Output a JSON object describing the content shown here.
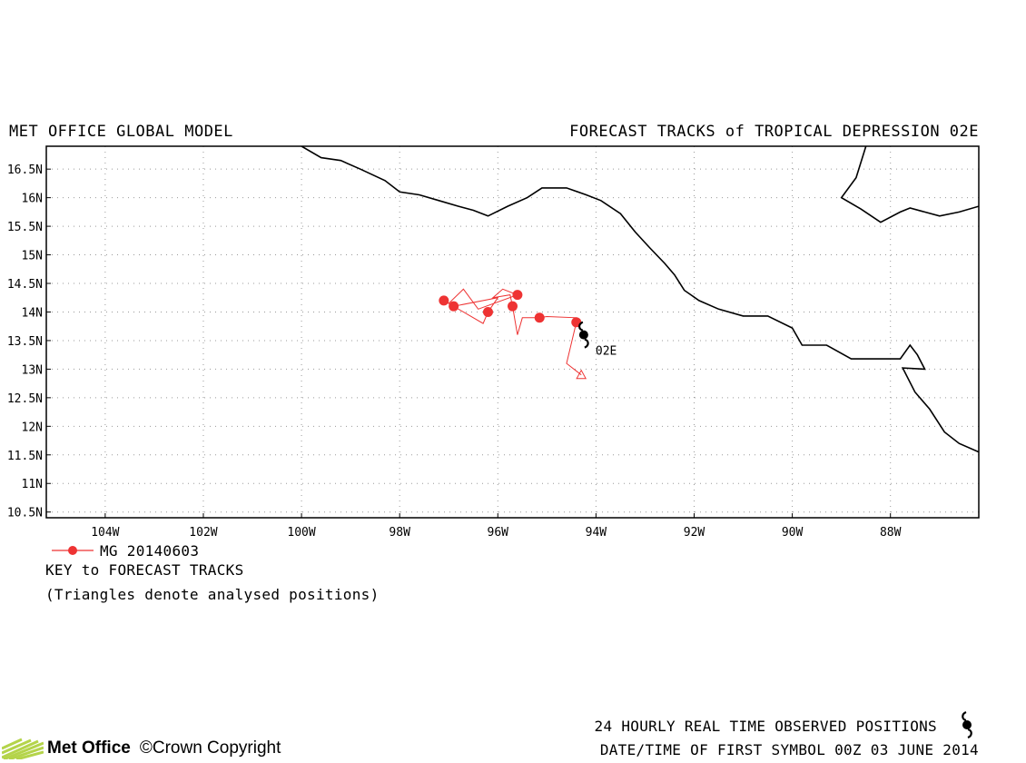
{
  "header": {
    "left": "MET OFFICE GLOBAL MODEL",
    "right": "FORECAST TRACKS of TROPICAL DEPRESSION 02E"
  },
  "map": {
    "lon_range": [
      -105.2,
      -86.2
    ],
    "lat_range": [
      10.4,
      16.9
    ],
    "lat_ticks": [
      {
        "value": 16.5,
        "label": "16.5N"
      },
      {
        "value": 16,
        "label": "16N"
      },
      {
        "value": 15.5,
        "label": "15.5N"
      },
      {
        "value": 15,
        "label": "15N"
      },
      {
        "value": 14.5,
        "label": "14.5N"
      },
      {
        "value": 14,
        "label": "14N"
      },
      {
        "value": 13.5,
        "label": "13.5N"
      },
      {
        "value": 13,
        "label": "13N"
      },
      {
        "value": 12.5,
        "label": "12.5N"
      },
      {
        "value": 12,
        "label": "12N"
      },
      {
        "value": 11.5,
        "label": "11.5N"
      },
      {
        "value": 11,
        "label": "11N"
      },
      {
        "value": 10.5,
        "label": "10.5N"
      }
    ],
    "lon_ticks": [
      {
        "value": -104,
        "label": "104W"
      },
      {
        "value": -102,
        "label": "102W"
      },
      {
        "value": -100,
        "label": "100W"
      },
      {
        "value": -98,
        "label": "98W"
      },
      {
        "value": -96,
        "label": "96W"
      },
      {
        "value": -94,
        "label": "94W"
      },
      {
        "value": -92,
        "label": "92W"
      },
      {
        "value": -90,
        "label": "90W"
      },
      {
        "value": -88,
        "label": "88W"
      }
    ],
    "grid": true,
    "coastline_main": [
      [
        -100.0,
        16.9
      ],
      [
        -99.6,
        16.7
      ],
      [
        -99.2,
        16.65
      ],
      [
        -98.8,
        16.5
      ],
      [
        -98.3,
        16.3
      ],
      [
        -98.0,
        16.1
      ],
      [
        -97.6,
        16.05
      ],
      [
        -97.2,
        15.95
      ],
      [
        -96.8,
        15.85
      ],
      [
        -96.5,
        15.78
      ],
      [
        -96.2,
        15.68
      ],
      [
        -95.8,
        15.85
      ],
      [
        -95.4,
        16.0
      ],
      [
        -95.1,
        16.17
      ],
      [
        -94.6,
        16.17
      ],
      [
        -94.2,
        16.05
      ],
      [
        -93.9,
        15.95
      ],
      [
        -93.5,
        15.72
      ],
      [
        -93.2,
        15.4
      ],
      [
        -92.9,
        15.12
      ],
      [
        -92.6,
        14.85
      ],
      [
        -92.4,
        14.65
      ],
      [
        -92.2,
        14.38
      ],
      [
        -91.9,
        14.2
      ],
      [
        -91.5,
        14.05
      ],
      [
        -91.0,
        13.93
      ],
      [
        -90.5,
        13.93
      ],
      [
        -90.0,
        13.72
      ],
      [
        -89.8,
        13.42
      ],
      [
        -89.3,
        13.42
      ],
      [
        -88.8,
        13.18
      ],
      [
        -88.3,
        13.18
      ],
      [
        -87.8,
        13.18
      ],
      [
        -87.6,
        13.42
      ],
      [
        -87.45,
        13.25
      ],
      [
        -87.3,
        13.0
      ],
      [
        -87.75,
        13.02
      ],
      [
        -87.5,
        12.6
      ],
      [
        -87.2,
        12.3
      ],
      [
        -86.9,
        11.9
      ],
      [
        -86.6,
        11.7
      ],
      [
        -86.2,
        11.55
      ]
    ],
    "coastline_east": [
      [
        -88.5,
        16.9
      ],
      [
        -88.7,
        16.35
      ],
      [
        -89.0,
        16.0
      ],
      [
        -88.6,
        15.8
      ],
      [
        -88.2,
        15.57
      ],
      [
        -87.8,
        15.75
      ],
      [
        -87.6,
        15.82
      ],
      [
        -87.3,
        15.75
      ],
      [
        -87.0,
        15.68
      ],
      [
        -86.6,
        15.75
      ],
      [
        -86.2,
        15.85
      ]
    ]
  },
  "storm": {
    "label": "02E",
    "position": {
      "lon": -94.25,
      "lat": 13.6
    },
    "symbol": "tropical-cyclone-icon",
    "color": "#000000"
  },
  "chart_data": {
    "type": "track",
    "series": [
      {
        "name": "MG 20140603",
        "color": "#ee3333",
        "analysed_start": {
          "lon": -94.3,
          "lat": 12.9
        },
        "path": [
          [
            -94.3,
            12.9
          ],
          [
            -94.6,
            13.1
          ],
          [
            -94.4,
            13.82
          ],
          [
            -94.4,
            13.9
          ],
          [
            -95.0,
            13.92
          ],
          [
            -95.15,
            13.9
          ],
          [
            -95.5,
            13.9
          ],
          [
            -95.6,
            13.6
          ],
          [
            -95.7,
            14.1
          ],
          [
            -95.75,
            14.3
          ],
          [
            -96.1,
            14.25
          ],
          [
            -95.9,
            14.4
          ],
          [
            -95.6,
            14.3
          ],
          [
            -96.4,
            14.05
          ],
          [
            -96.7,
            14.4
          ],
          [
            -97.0,
            14.15
          ],
          [
            -97.1,
            14.2
          ],
          [
            -96.9,
            14.1
          ],
          [
            -96.0,
            14.25
          ],
          [
            -96.2,
            14.0
          ],
          [
            -96.3,
            13.8
          ],
          [
            -96.9,
            14.1
          ]
        ],
        "points": [
          {
            "lon": -94.4,
            "lat": 13.82
          },
          {
            "lon": -95.15,
            "lat": 13.9
          },
          {
            "lon": -95.7,
            "lat": 14.1
          },
          {
            "lon": -95.6,
            "lat": 14.3
          },
          {
            "lon": -96.2,
            "lat": 14.0
          },
          {
            "lon": -96.9,
            "lat": 14.1
          },
          {
            "lon": -97.1,
            "lat": 14.2
          }
        ]
      }
    ]
  },
  "key": {
    "series_label": "MG 20140603",
    "title": "KEY to FORECAST TRACKS",
    "note": "(Triangles denote analysed positions)"
  },
  "footer": {
    "line1": "24 HOURLY REAL TIME OBSERVED POSITIONS",
    "line2": "DATE/TIME OF FIRST SYMBOL 00Z 03 JUNE 2014",
    "logo_text": "Met Office",
    "copyright": "©Crown Copyright"
  }
}
